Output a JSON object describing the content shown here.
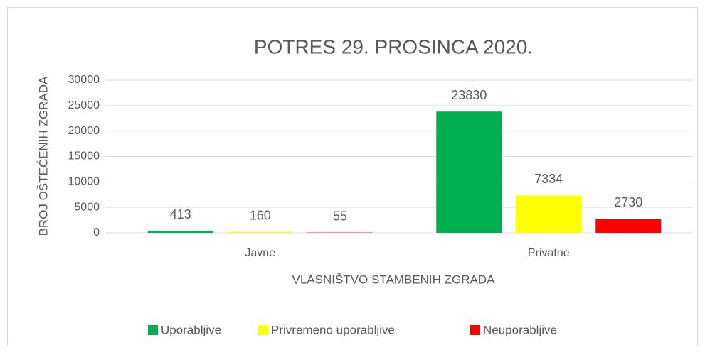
{
  "chart_data": {
    "type": "bar",
    "title": "POTRES 29. PROSINCA 2020.",
    "x_label": "VLASNIŠTVO STAMBENIH ZGRADA",
    "y_label": "BROJ OŠTEĆENIH ZGRADA",
    "categories": [
      "Javne",
      "Privatne"
    ],
    "series": [
      {
        "name": "Uporabljive",
        "color": "#00b050",
        "values": [
          413,
          23830
        ]
      },
      {
        "name": "Privremeno uporabljive",
        "color": "#ffff00",
        "values": [
          160,
          7334
        ]
      },
      {
        "name": "Neuporabljive",
        "color": "#ff0000",
        "values": [
          55,
          2730
        ]
      }
    ],
    "ylim": [
      0,
      30000
    ],
    "yticks": [
      0,
      5000,
      10000,
      15000,
      20000,
      25000,
      30000
    ],
    "grid": true,
    "legend": "bottom"
  }
}
